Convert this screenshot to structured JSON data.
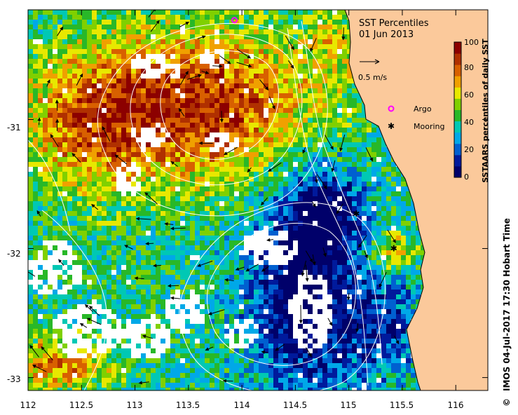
{
  "title": {
    "line1": "SST Percentiles",
    "line2": "01 Jun 2013"
  },
  "velocity_scale": {
    "label": "0.5 m/s"
  },
  "legend": {
    "argo_label": "Argo",
    "mooring_label": "Mooring",
    "argo_color": "#ff00ff",
    "mooring_color": "#000000"
  },
  "colorbar": {
    "title": "SSTAARS percentiles of daily SST",
    "ticks": [
      "100",
      "80",
      "60",
      "40",
      "20",
      "0"
    ],
    "colors": [
      "#00006a",
      "#001a9c",
      "#0060d0",
      "#00a8e8",
      "#00c8b4",
      "#28b828",
      "#80d000",
      "#e8e800",
      "#f0a000",
      "#d86000",
      "#b03000",
      "#8c0000"
    ]
  },
  "map": {
    "x_ticks": [
      "112",
      "112.5",
      "113",
      "113.5",
      "114",
      "114.5",
      "115",
      "115.5",
      "116"
    ],
    "y_ticks": [
      "-31",
      "-32",
      "-33"
    ],
    "lon_range": [
      112,
      116.3
    ],
    "lat_range": [
      -33.1,
      -30.15
    ],
    "land_color": "#fbc99b",
    "nodata_color": "#ffffff",
    "argo_position": {
      "lon": 113.93,
      "lat": -30.23
    },
    "mooring_positions": [
      {
        "lon": 115.07,
        "lat": -31.73
      },
      {
        "lon": 115.42,
        "lat": -32.0
      }
    ]
  },
  "credit": {
    "symbol": "©",
    "text": "IMOS 04-Jul-2017 17:30 Hobart Time"
  }
}
